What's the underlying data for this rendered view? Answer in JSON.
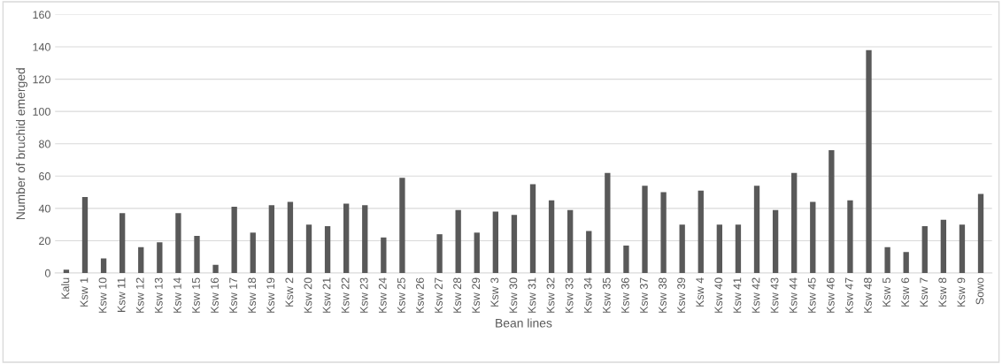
{
  "chart_data": {
    "type": "bar",
    "xlabel": "Bean lines",
    "ylabel": "Number of bruchid emerged",
    "categories": [
      "Kalu",
      "Ksw 1",
      "Ksw 10",
      "Ksw 11",
      "Ksw 12",
      "Ksw 13",
      "Ksw 14",
      "Ksw 15",
      "Ksw 16",
      "Ksw 17",
      "Ksw 18",
      "Ksw 19",
      "Ksw 2",
      "Ksw 20",
      "Ksw 21",
      "Ksw 22",
      "Ksw 23",
      "Ksw 24",
      "Ksw 25",
      "Ksw 26",
      "Ksw 27",
      "Ksw 28",
      "Ksw 29",
      "Ksw 3",
      "Ksw 30",
      "Ksw 31",
      "Ksw 32",
      "Ksw 33",
      "Ksw 34",
      "Ksw 35",
      "Ksw 36",
      "Ksw 37",
      "Ksw 38",
      "Ksw 39",
      "Ksw 4",
      "Ksw 40",
      "Ksw 41",
      "Ksw 42",
      "Ksw 43",
      "Ksw 44",
      "Ksw 45",
      "Ksw 46",
      "Ksw 47",
      "Ksw 48",
      "Ksw 5",
      "Ksw 6",
      "Ksw 7",
      "Ksw 8",
      "Ksw 9",
      "Sowo"
    ],
    "values": [
      2,
      47,
      9,
      37,
      16,
      19,
      37,
      23,
      5,
      41,
      25,
      42,
      44,
      30,
      29,
      43,
      42,
      22,
      59,
      0,
      24,
      39,
      25,
      38,
      36,
      55,
      45,
      39,
      26,
      62,
      17,
      54,
      50,
      30,
      51,
      30,
      30,
      54,
      39,
      62,
      44,
      76,
      45,
      138,
      16,
      13,
      29,
      33,
      30,
      49
    ],
    "color": "#595959",
    "ylim": [
      0,
      160
    ],
    "yticks": [
      0,
      20,
      40,
      60,
      80,
      100,
      120,
      140,
      160
    ],
    "grid": "y"
  }
}
